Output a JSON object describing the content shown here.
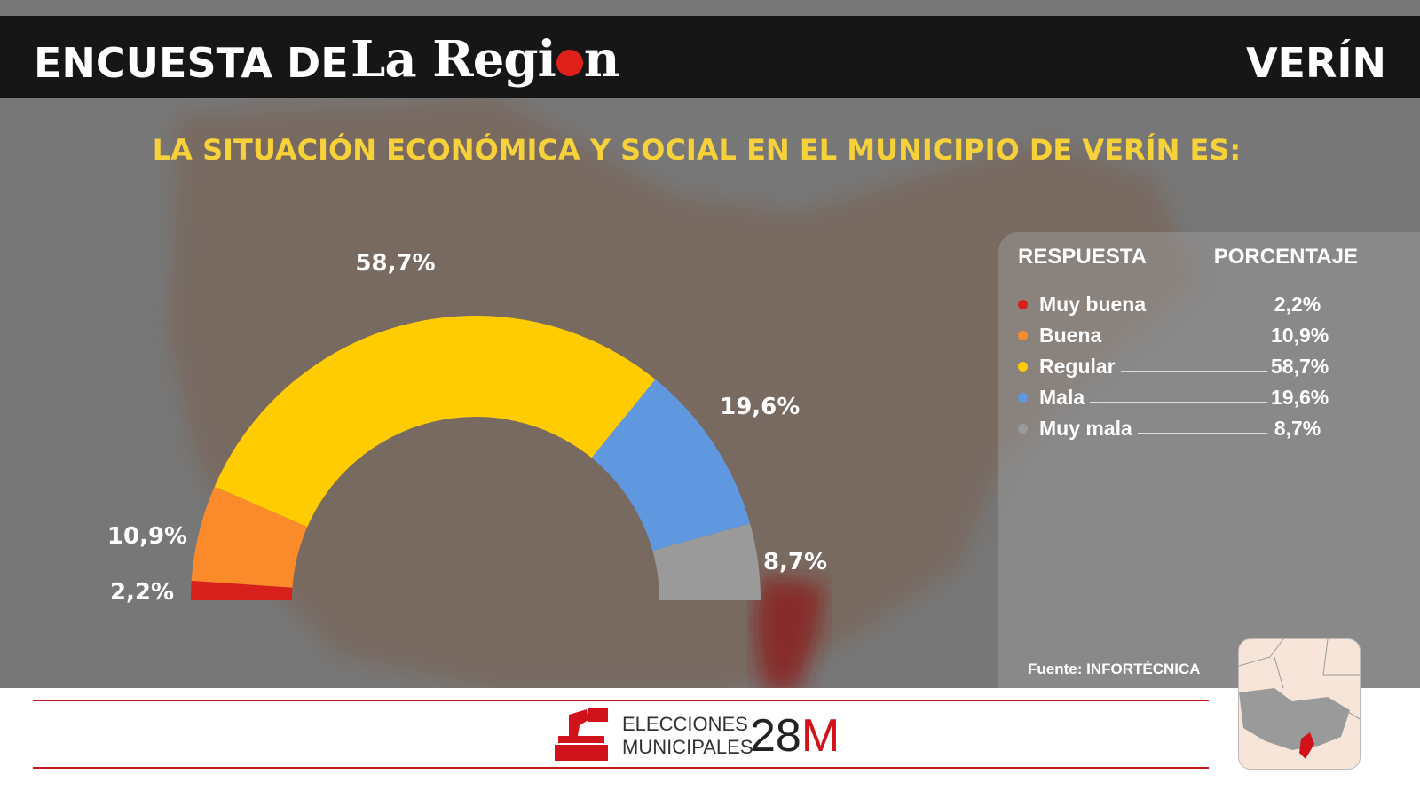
{
  "header": {
    "prefix": "ENCUESTA DE",
    "logo": "La Región",
    "town": "VERÍN"
  },
  "chart_data": {
    "type": "pie",
    "subtype": "semicircle-donut",
    "title": "LA SITUACIÓN ECONÓMICA Y SOCIAL EN EL MUNICIPIO DE VERÍN ES:",
    "categories": [
      "Muy buena",
      "Buena",
      "Regular",
      "Mala",
      "Muy mala"
    ],
    "values": [
      2.2,
      10.9,
      58.7,
      19.6,
      8.7
    ],
    "labels": [
      "2,2%",
      "10,9%",
      "58,7%",
      "19,6%",
      "8,7%"
    ],
    "colors": [
      "#d7201b",
      "#fb8a2a",
      "#fecc00",
      "#5f98df",
      "#9a9a9a"
    ]
  },
  "legend": {
    "col_response": "RESPUESTA",
    "col_percent": "PORCENTAJE"
  },
  "source": "Fuente: INFORTÉCNICA",
  "footer": {
    "line1": "ELECCIONES",
    "line2": "MUNICIPALES",
    "num": "28",
    "letter": "M",
    "icon": "ballot-box-icon"
  }
}
